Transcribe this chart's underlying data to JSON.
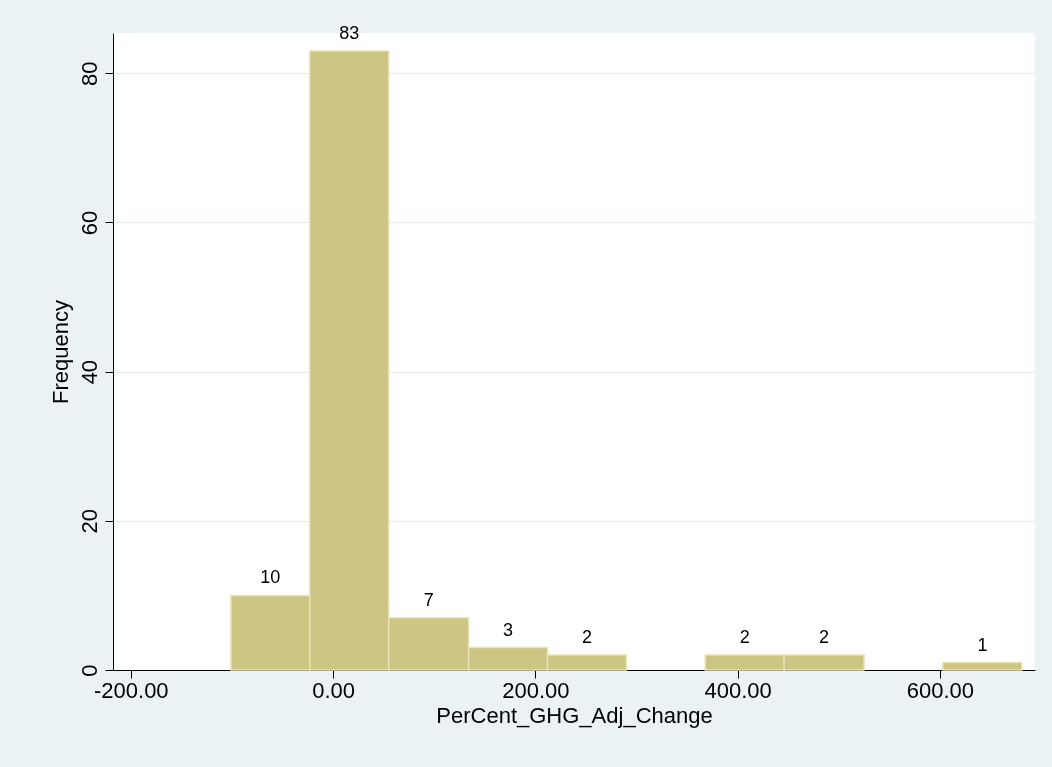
{
  "chart_data": {
    "type": "histogram",
    "xlabel": "PerCent_GHG_Adj_Change",
    "ylabel": "Frequency",
    "bins": [
      -101,
      -23,
      55,
      134,
      212,
      290,
      368,
      446,
      525,
      603,
      681
    ],
    "values": [
      10,
      83,
      7,
      3,
      2,
      0,
      2,
      2,
      0,
      1
    ],
    "value_labels": [
      "10",
      "83",
      "7",
      "3",
      "2",
      null,
      "2",
      "2",
      null,
      "1"
    ],
    "color": "#cdc583",
    "xlim": [
      -217.6,
      694
    ],
    "xticks": [
      {
        "value": -200,
        "label": "-200.00"
      },
      {
        "value": 0,
        "label": "0.00"
      },
      {
        "value": 200,
        "label": "200.00"
      },
      {
        "value": 400,
        "label": "400.00"
      },
      {
        "value": 600,
        "label": "600.00"
      }
    ],
    "ylim": [
      0,
      85.4
    ],
    "yticks": [
      0,
      20,
      40,
      60,
      80
    ],
    "grid": "y"
  }
}
